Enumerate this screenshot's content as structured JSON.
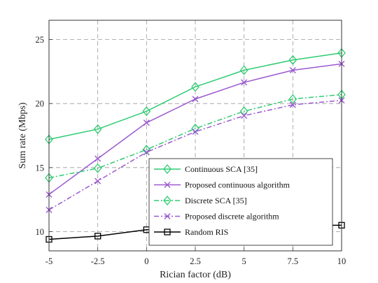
{
  "chart_data": {
    "type": "line",
    "xlabel": "Rician factor (dB)",
    "ylabel": "Sum rate (Mbps)",
    "x": [
      -5,
      -2.5,
      0,
      2.5,
      5,
      7.5,
      10
    ],
    "x_tick_labels": [
      "-5",
      "-2.5",
      "0",
      "2.5",
      "5",
      "7.5",
      "10"
    ],
    "y_ticks": [
      10,
      15,
      20,
      25
    ],
    "xlim": [
      -5,
      10
    ],
    "ylim": [
      8.5,
      26.5
    ],
    "grid": true,
    "legend_position": "lower-right",
    "series": [
      {
        "name": "Continuous SCA [35]",
        "values": [
          17.2,
          18.0,
          19.4,
          21.3,
          22.6,
          23.4,
          23.95
        ],
        "color": "#2ecc71",
        "dash": "solid",
        "marker": "diamond"
      },
      {
        "name": "Proposed continuous algorithm",
        "values": [
          12.9,
          15.7,
          18.5,
          20.35,
          21.65,
          22.6,
          23.1
        ],
        "color": "#9b59d0",
        "dash": "solid",
        "marker": "x"
      },
      {
        "name": "Discrete SCA [35]",
        "values": [
          14.2,
          14.95,
          16.4,
          18.05,
          19.4,
          20.35,
          20.7
        ],
        "color": "#2ecc71",
        "dash": "dashdot",
        "marker": "diamond"
      },
      {
        "name": "Proposed discrete algorithm",
        "values": [
          11.7,
          13.95,
          16.2,
          17.8,
          19.05,
          19.9,
          20.25
        ],
        "color": "#9b59d0",
        "dash": "dashdot",
        "marker": "x"
      },
      {
        "name": "Random RIS",
        "values": [
          9.4,
          9.65,
          10.15,
          10.35,
          10.3,
          10.5,
          10.5
        ],
        "color": "#000000",
        "dash": "solid",
        "marker": "square"
      }
    ]
  }
}
